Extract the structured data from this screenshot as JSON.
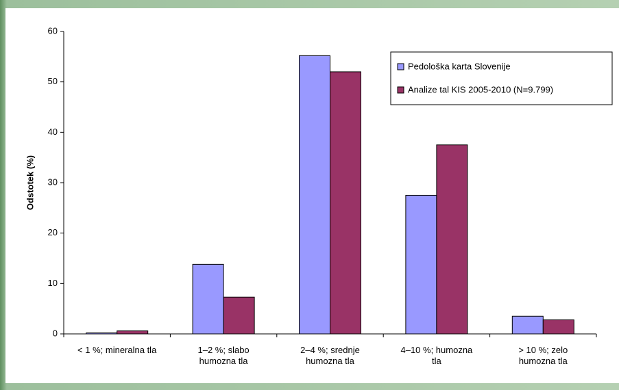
{
  "chart_data": {
    "type": "bar",
    "y_label": "Odstotek (%)",
    "categories": [
      "< 1 %; mineralna tla",
      "1–2 %; slabo humozna tla",
      "2–4 %; srednje humozna tla",
      "4–10 %; humozna tla",
      "> 10 %; zelo humozna tla"
    ],
    "series": [
      {
        "name": "Pedološka karta Slovenije",
        "color": "#9999ff",
        "values": [
          0.2,
          13.8,
          55.2,
          27.5,
          3.5
        ]
      },
      {
        "name": "Analize tal KIS 2005-2010 (N=9.799)",
        "color": "#993366",
        "values": [
          0.6,
          7.3,
          52,
          37.5,
          2.8
        ]
      }
    ],
    "ylim": [
      0,
      60
    ],
    "yticks": [
      0,
      10,
      20,
      30,
      40,
      50,
      60
    ],
    "legend": "upper right"
  }
}
